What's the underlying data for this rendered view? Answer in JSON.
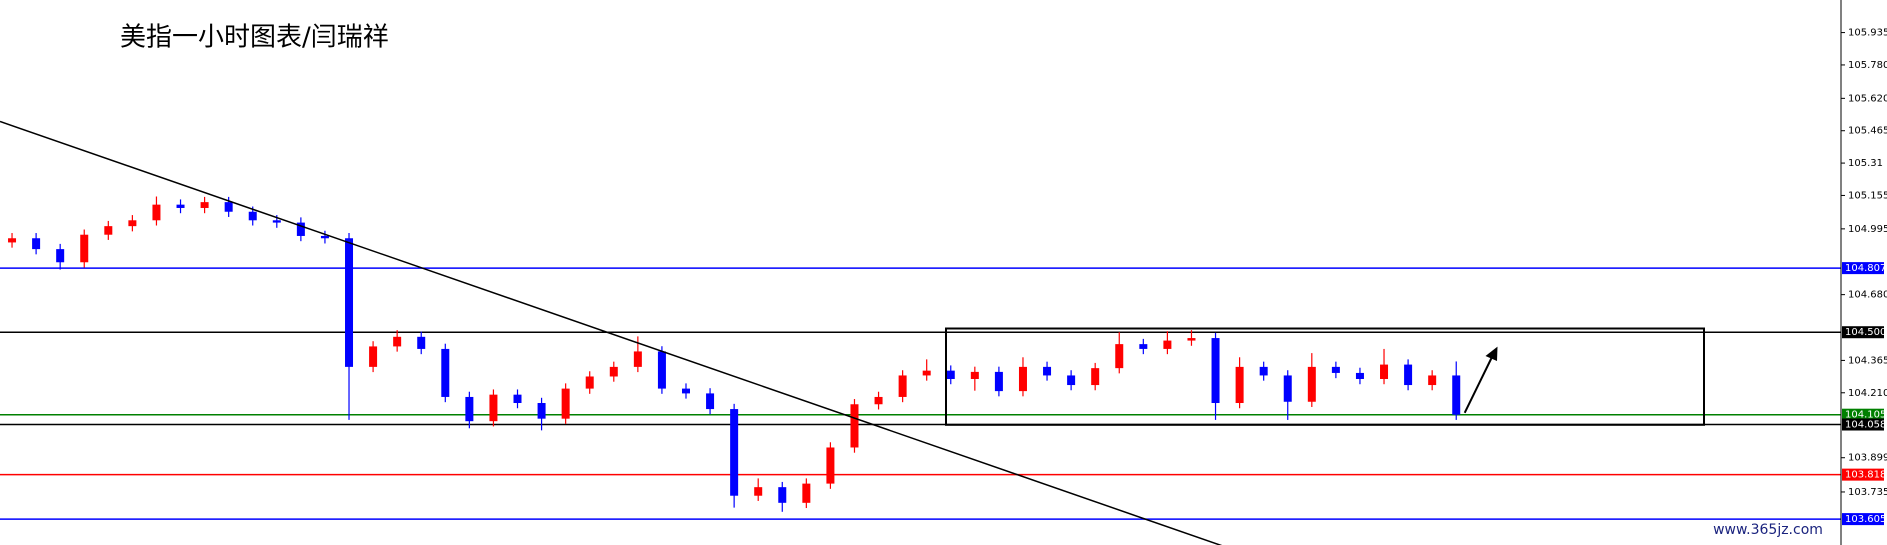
{
  "chart_data": {
    "type": "candlestick",
    "title": "美指一小时图表/闫瑞祥",
    "watermark": "www.365jz.com",
    "up_color": "#ff0000",
    "down_color": "#0000ff",
    "ylim": [
      103.481,
      106.091
    ],
    "yticks": [
      105.935,
      {
        "value": 105.78,
        "label": "105.780"
      },
      {
        "value": 105.62,
        "label": "105.620"
      },
      105.465,
      105.31,
      105.155,
      104.995,
      {
        "value": 104.68,
        "label": "104.680"
      },
      104.365,
      {
        "value": 104.21,
        "label": "104.210"
      },
      103.899,
      103.735
    ],
    "levels": [
      {
        "value": 104.807,
        "label": "104.807",
        "color": "#0000ff"
      },
      {
        "value": 104.5,
        "label": "104.500",
        "color": "#000000"
      },
      {
        "value": 104.105,
        "label": "104.105",
        "color": "#008000"
      },
      {
        "value": 104.058,
        "label": "104.058",
        "color": "#000000"
      },
      {
        "value": 103.818,
        "label": "103.818",
        "color": "#ff0000"
      },
      {
        "value": 103.605,
        "label": "103.605",
        "color": "#0000ff"
      }
    ],
    "candles": [
      [
        104.93,
        104.975,
        104.905,
        104.95
      ],
      [
        104.95,
        104.975,
        104.873,
        104.898
      ],
      [
        104.898,
        104.923,
        104.8,
        104.835
      ],
      [
        104.835,
        104.992,
        104.81,
        104.967
      ],
      [
        104.967,
        105.033,
        104.942,
        105.008
      ],
      [
        105.008,
        105.061,
        104.983,
        105.036
      ],
      [
        105.036,
        105.15,
        105.011,
        105.111
      ],
      [
        105.111,
        105.136,
        105.07,
        105.095
      ],
      [
        105.095,
        105.148,
        105.07,
        105.123
      ],
      [
        105.123,
        105.148,
        105.052,
        105.077
      ],
      [
        105.077,
        105.102,
        105.011,
        105.036
      ],
      [
        105.036,
        105.061,
        105.0,
        105.025
      ],
      [
        105.025,
        105.05,
        104.936,
        104.961
      ],
      [
        104.961,
        104.986,
        104.925,
        104.95
      ],
      [
        104.95,
        104.975,
        104.08,
        104.334
      ],
      [
        104.334,
        104.457,
        104.309,
        104.432
      ],
      [
        104.432,
        104.51,
        104.407,
        104.478
      ],
      [
        104.478,
        104.503,
        104.395,
        104.42
      ],
      [
        104.42,
        104.445,
        104.165,
        104.19
      ],
      [
        104.19,
        104.215,
        104.04,
        104.074
      ],
      [
        104.074,
        104.226,
        104.049,
        104.201
      ],
      [
        104.201,
        104.226,
        104.136,
        104.161
      ],
      [
        104.161,
        104.186,
        104.03,
        104.086
      ],
      [
        104.086,
        104.255,
        104.061,
        104.23
      ],
      [
        104.23,
        104.313,
        104.205,
        104.288
      ],
      [
        104.288,
        104.359,
        104.263,
        104.334
      ],
      [
        104.334,
        104.48,
        104.309,
        104.408
      ],
      [
        104.408,
        104.433,
        104.205,
        104.23
      ],
      [
        104.23,
        104.255,
        104.182,
        104.207
      ],
      [
        104.207,
        104.232,
        104.107,
        104.132
      ],
      [
        104.132,
        104.157,
        103.66,
        103.717
      ],
      [
        103.717,
        103.8,
        103.692,
        103.758
      ],
      [
        103.758,
        103.783,
        103.64,
        103.683
      ],
      [
        103.683,
        103.8,
        103.658,
        103.775
      ],
      [
        103.775,
        103.973,
        103.75,
        103.948
      ],
      [
        103.948,
        104.18,
        103.923,
        104.155
      ],
      [
        104.155,
        104.215,
        104.13,
        104.19
      ],
      [
        104.19,
        104.318,
        104.165,
        104.293
      ],
      [
        104.293,
        104.37,
        104.268,
        104.316
      ],
      [
        104.316,
        104.341,
        104.251,
        104.276
      ],
      [
        104.276,
        104.335,
        104.22,
        104.31
      ],
      [
        104.31,
        104.335,
        104.193,
        104.218
      ],
      [
        104.218,
        104.38,
        104.193,
        104.334
      ],
      [
        104.334,
        104.359,
        104.268,
        104.293
      ],
      [
        104.293,
        104.318,
        104.222,
        104.247
      ],
      [
        104.247,
        104.353,
        104.222,
        104.328
      ],
      [
        104.328,
        104.5,
        104.303,
        104.443
      ],
      [
        104.443,
        104.468,
        104.395,
        104.42
      ],
      [
        104.42,
        104.505,
        104.395,
        104.46
      ],
      [
        104.46,
        104.51,
        104.435,
        104.472
      ],
      [
        104.472,
        104.497,
        104.08,
        104.161
      ],
      [
        104.161,
        104.38,
        104.136,
        104.334
      ],
      [
        104.334,
        104.359,
        104.268,
        104.293
      ],
      [
        104.293,
        104.318,
        104.08,
        104.167
      ],
      [
        104.167,
        104.4,
        104.142,
        104.334
      ],
      [
        104.334,
        104.359,
        104.28,
        104.305
      ],
      [
        104.305,
        104.33,
        104.251,
        104.276
      ],
      [
        104.276,
        104.42,
        104.251,
        104.345
      ],
      [
        104.345,
        104.37,
        104.222,
        104.247
      ],
      [
        104.247,
        104.318,
        104.222,
        104.293
      ],
      [
        104.293,
        104.36,
        104.08,
        104.105
      ]
    ]
  }
}
